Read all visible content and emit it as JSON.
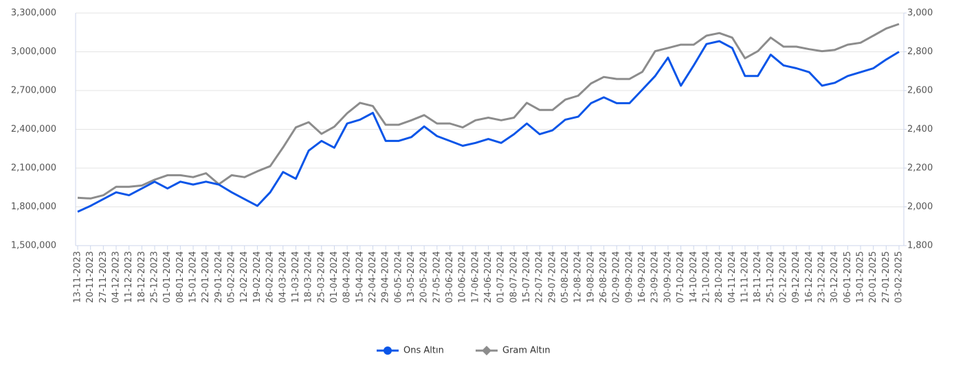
{
  "chart_data": {
    "type": "line",
    "categories": [
      "13-11-2023",
      "20-11-2023",
      "27-11-2023",
      "04-12-2023",
      "11-12-2023",
      "18-12-2023",
      "25-12-2023",
      "01-01-2024",
      "08-01-2024",
      "15-01-2024",
      "22-01-2024",
      "29-01-2024",
      "05-02-2024",
      "12-02-2024",
      "19-02-2024",
      "26-02-2024",
      "04-03-2024",
      "11-03-2024",
      "18-03-2024",
      "25-03-2024",
      "01-04-2024",
      "08-04-2024",
      "15-04-2024",
      "22-04-2024",
      "29-04-2024",
      "06-05-2024",
      "13-05-2024",
      "20-05-2024",
      "27-05-2024",
      "03-06-2024",
      "10-06-2024",
      "17-06-2024",
      "24-06-2024",
      "01-07-2024",
      "08-07-2024",
      "15-07-2024",
      "22-07-2024",
      "29-07-2024",
      "05-08-2024",
      "12-08-2024",
      "19-08-2024",
      "26-08-2024",
      "02-09-2024",
      "09-09-2024",
      "16-09-2024",
      "23-09-2024",
      "30-09-2024",
      "07-10-2024",
      "14-10-2024",
      "21-10-2024",
      "28-10-2024",
      "04-11-2024",
      "11-11-2024",
      "18-11-2024",
      "25-11-2024",
      "02-12-2024",
      "09-12-2024",
      "16-12-2024",
      "23-12-2024",
      "30-12-2024",
      "06-01-2025",
      "13-01-2025",
      "20-01-2025",
      "27-01-2025",
      "03-02-2025"
    ],
    "series": [
      {
        "name": "Ons Altın",
        "color": "#0a55e8",
        "axis": "y2",
        "marker": "circle",
        "values": [
          1975,
          2005,
          2040,
          2075,
          2060,
          2095,
          2130,
          2095,
          2130,
          2115,
          2130,
          2115,
          2075,
          2040,
          2005,
          2075,
          2180,
          2145,
          2290,
          2340,
          2305,
          2430,
          2450,
          2485,
          2340,
          2340,
          2360,
          2415,
          2365,
          2340,
          2315,
          2330,
          2350,
          2330,
          2375,
          2430,
          2375,
          2395,
          2450,
          2465,
          2535,
          2565,
          2535,
          2535,
          2605,
          2675,
          2770,
          2625,
          2730,
          2840,
          2855,
          2820,
          2675,
          2675,
          2785,
          2730,
          2715,
          2695,
          2625,
          2640,
          2675,
          2695,
          2715,
          2760,
          2800
        ]
      },
      {
        "name": "Gram Altın",
        "color": "#8c8c8c",
        "marker": "diamond",
        "values": [
          1870000,
          1865000,
          1890000,
          1955000,
          1955000,
          1965000,
          2010000,
          2045000,
          2045000,
          2030000,
          2060000,
          1975000,
          2045000,
          2030000,
          2075000,
          2115000,
          2260000,
          2415000,
          2455000,
          2365000,
          2420000,
          2525000,
          2605000,
          2580000,
          2435000,
          2435000,
          2470000,
          2510000,
          2445000,
          2445000,
          2415000,
          2470000,
          2490000,
          2470000,
          2490000,
          2605000,
          2550000,
          2550000,
          2630000,
          2660000,
          2755000,
          2805000,
          2790000,
          2790000,
          2845000,
          3005000,
          3030000,
          3055000,
          3055000,
          3125000,
          3145000,
          3110000,
          2950000,
          3005000,
          3110000,
          3040000,
          3040000,
          3020000,
          3005000,
          3015000,
          3055000,
          3070000,
          3125000,
          3180000,
          3215000
        ]
      }
    ],
    "ylim": [
      1500000,
      3300000
    ],
    "yticks": [
      {
        "value": 1500000,
        "label": "1,500,000"
      },
      {
        "value": 1800000,
        "label": "1,800,000"
      },
      {
        "value": 2100000,
        "label": "2,100,000"
      },
      {
        "value": 2400000,
        "label": "2,400,000"
      },
      {
        "value": 2700000,
        "label": "2,700,000"
      },
      {
        "value": 3000000,
        "label": "3,000,000"
      },
      {
        "value": 3300000,
        "label": "3,300,000"
      }
    ],
    "y2lim": [
      1800,
      3000
    ],
    "y2ticks": [
      {
        "value": 1800,
        "label": "1,800"
      },
      {
        "value": 2000,
        "label": "2,000"
      },
      {
        "value": 2200,
        "label": "2,200"
      },
      {
        "value": 2400,
        "label": "2,400"
      },
      {
        "value": 2600,
        "label": "2,600"
      },
      {
        "value": 2800,
        "label": "2,800"
      },
      {
        "value": 3000,
        "label": "3,000"
      }
    ],
    "grid": true,
    "legend": "bottom"
  }
}
